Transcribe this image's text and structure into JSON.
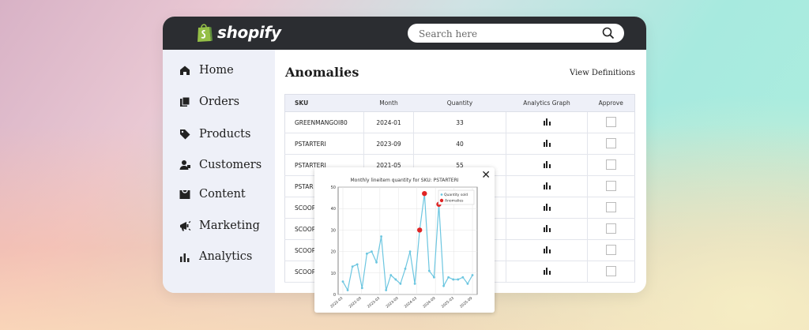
{
  "brand": {
    "name": "shopify",
    "color": "#95bf47"
  },
  "search": {
    "placeholder": "Search here"
  },
  "sidebar": {
    "items": [
      {
        "label": "Home",
        "icon": "home-icon"
      },
      {
        "label": "Orders",
        "icon": "orders-icon"
      },
      {
        "label": "Products",
        "icon": "tag-icon"
      },
      {
        "label": "Customers",
        "icon": "customers-icon"
      },
      {
        "label": "Content",
        "icon": "content-icon"
      },
      {
        "label": "Marketing",
        "icon": "megaphone-icon"
      },
      {
        "label": "Analytics",
        "icon": "bar-chart-icon"
      }
    ]
  },
  "main": {
    "title": "Anomalies",
    "view_definitions": "View Definitions",
    "table": {
      "headers": [
        "SKU",
        "Month",
        "Quantity",
        "Analytics Graph",
        "Approve"
      ],
      "rows": [
        {
          "sku": "GREENMANGOI80",
          "month": "2024-01",
          "quantity": "33"
        },
        {
          "sku": "PSTARTERI",
          "month": "2023-09",
          "quantity": "40"
        },
        {
          "sku": "PSTARTERI",
          "month": "2021-05",
          "quantity": "55"
        },
        {
          "sku": "PSTAR",
          "month": "",
          "quantity": ""
        },
        {
          "sku": "SCOOP",
          "month": "",
          "quantity": ""
        },
        {
          "sku": "SCOOP",
          "month": "",
          "quantity": ""
        },
        {
          "sku": "SCOOP",
          "month": "",
          "quantity": ""
        },
        {
          "sku": "SCOOP",
          "month": "",
          "quantity": ""
        }
      ]
    }
  },
  "popup": {
    "close_label": "✕",
    "chart_data": {
      "type": "line",
      "title": "Monthly lineitem quantity for SKU: PSTARTERI",
      "xlabel": "",
      "ylabel": "",
      "ylim": [
        0,
        50
      ],
      "yticks": [
        0,
        10,
        20,
        30,
        40,
        50
      ],
      "xtick_labels": [
        "2022-03",
        "2022-09",
        "2023-03",
        "2023-09",
        "2024-03",
        "2024-09",
        "2025-03",
        "2025-09"
      ],
      "xtick_label_text": [
        "2022-03",
        "2022-09",
        "2023-03",
        "2023-09",
        "2024-03",
        "2024-09",
        "2025-03",
        "2025-09"
      ],
      "legend_position": "top-right",
      "series": [
        {
          "name": "Quantity sold",
          "color": "#6cc6e0",
          "values": [
            6,
            2,
            13,
            14,
            3,
            19,
            20,
            15,
            27,
            2,
            9,
            7,
            5,
            12,
            20,
            5,
            30,
            47,
            11,
            8,
            42,
            4,
            8,
            7,
            7,
            8,
            5,
            9
          ]
        },
        {
          "name": "Anomalies",
          "color": "#e02424",
          "points": [
            {
              "index": 16,
              "value": 30
            },
            {
              "index": 17,
              "value": 47
            },
            {
              "index": 20,
              "value": 42
            }
          ]
        }
      ]
    }
  }
}
